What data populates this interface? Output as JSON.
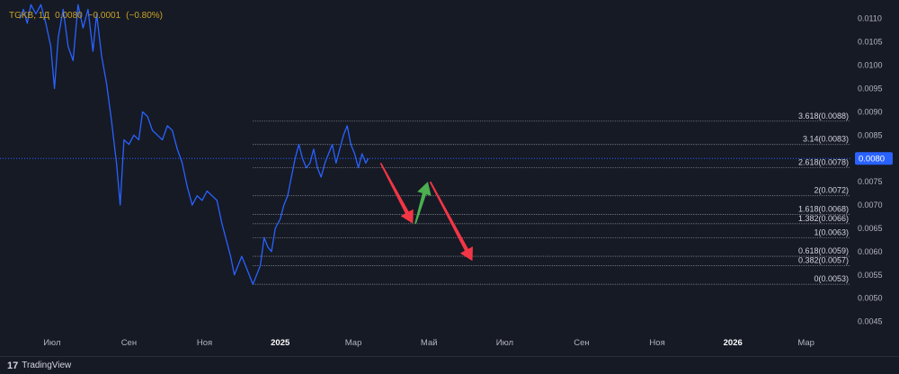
{
  "ticker": {
    "symbol": "TGKB, 1Д",
    "price": "0.0080",
    "change": "−0.0001",
    "change_pct": "(−0.80%)"
  },
  "brand": {
    "name": "TradingView",
    "logo_glyph": "17"
  },
  "colors": {
    "background": "#161a25",
    "price_line": "#2962ff",
    "grid": "#2a2e39",
    "fib_line": "#9598a1",
    "label_text": "#d1d4dc",
    "axis_text": "#b2b5be",
    "x_axis_text": "#b2b5be",
    "x_axis_year": "#ffffff",
    "price_tag_bg": "#2962ff",
    "arrow_down": "#f23645",
    "arrow_up": "#4caf50",
    "ticker_text": "#c9a227"
  },
  "current_price_tag": "0.0080",
  "chart_data": {
    "type": "line",
    "title": "",
    "xlabel": "",
    "ylabel": "",
    "ylim": [
      0.0043,
      0.0114
    ],
    "x_range": [
      "2024-06-05",
      "2026-03-31"
    ],
    "grid": false,
    "y_ticks": [
      "0.0045",
      "0.0050",
      "0.0055",
      "0.0060",
      "0.0065",
      "0.0070",
      "0.0075",
      "0.0080",
      "0.0085",
      "0.0090",
      "0.0095",
      "0.0100",
      "0.0105",
      "0.0110"
    ],
    "x_ticks": [
      {
        "label": "Июл",
        "date": "2024-07-01",
        "year": false
      },
      {
        "label": "Сен",
        "date": "2024-09-01",
        "year": false
      },
      {
        "label": "Ноя",
        "date": "2024-11-01",
        "year": false
      },
      {
        "label": "2025",
        "date": "2025-01-01",
        "year": true
      },
      {
        "label": "Мар",
        "date": "2025-03-01",
        "year": false
      },
      {
        "label": "Май",
        "date": "2025-05-01",
        "year": false
      },
      {
        "label": "Июл",
        "date": "2025-07-01",
        "year": false
      },
      {
        "label": "Сен",
        "date": "2025-09-01",
        "year": false
      },
      {
        "label": "Ноя",
        "date": "2025-11-01",
        "year": false
      },
      {
        "label": "2026",
        "date": "2026-01-01",
        "year": true
      },
      {
        "label": "Мар",
        "date": "2026-03-01",
        "year": false
      }
    ],
    "series": [
      {
        "values": [
          [
            "2024-06-05",
            0.011
          ],
          [
            "2024-06-08",
            0.0112
          ],
          [
            "2024-06-11",
            0.0109
          ],
          [
            "2024-06-14",
            0.0113
          ],
          [
            "2024-06-18",
            0.0111
          ],
          [
            "2024-06-22",
            0.0113
          ],
          [
            "2024-06-26",
            0.0109
          ],
          [
            "2024-06-30",
            0.0104
          ],
          [
            "2024-07-03",
            0.0095
          ],
          [
            "2024-07-06",
            0.0106
          ],
          [
            "2024-07-10",
            0.0112
          ],
          [
            "2024-07-14",
            0.0104
          ],
          [
            "2024-07-18",
            0.0101
          ],
          [
            "2024-07-22",
            0.0113
          ],
          [
            "2024-07-26",
            0.0108
          ],
          [
            "2024-07-30",
            0.0112
          ],
          [
            "2024-08-03",
            0.0103
          ],
          [
            "2024-08-06",
            0.0111
          ],
          [
            "2024-08-10",
            0.0102
          ],
          [
            "2024-08-14",
            0.0096
          ],
          [
            "2024-08-18",
            0.0088
          ],
          [
            "2024-08-22",
            0.0079
          ],
          [
            "2024-08-25",
            0.007
          ],
          [
            "2024-08-28",
            0.0084
          ],
          [
            "2024-09-01",
            0.0083
          ],
          [
            "2024-09-05",
            0.0085
          ],
          [
            "2024-09-09",
            0.0084
          ],
          [
            "2024-09-12",
            0.009
          ],
          [
            "2024-09-16",
            0.0089
          ],
          [
            "2024-09-20",
            0.0086
          ],
          [
            "2024-09-24",
            0.0085
          ],
          [
            "2024-09-28",
            0.0084
          ],
          [
            "2024-10-02",
            0.0087
          ],
          [
            "2024-10-06",
            0.0086
          ],
          [
            "2024-10-10",
            0.0082
          ],
          [
            "2024-10-14",
            0.0079
          ],
          [
            "2024-10-18",
            0.0074
          ],
          [
            "2024-10-22",
            0.007
          ],
          [
            "2024-10-26",
            0.0072
          ],
          [
            "2024-10-30",
            0.0071
          ],
          [
            "2024-11-03",
            0.0073
          ],
          [
            "2024-11-07",
            0.0072
          ],
          [
            "2024-11-11",
            0.0071
          ],
          [
            "2024-11-15",
            0.0066
          ],
          [
            "2024-11-19",
            0.0062
          ],
          [
            "2024-11-22",
            0.0059
          ],
          [
            "2024-11-25",
            0.0055
          ],
          [
            "2024-11-28",
            0.0057
          ],
          [
            "2024-12-01",
            0.0059
          ],
          [
            "2024-12-04",
            0.0057
          ],
          [
            "2024-12-07",
            0.0055
          ],
          [
            "2024-12-10",
            0.0053
          ],
          [
            "2024-12-13",
            0.0055
          ],
          [
            "2024-12-16",
            0.0057
          ],
          [
            "2024-12-19",
            0.0063
          ],
          [
            "2024-12-22",
            0.0061
          ],
          [
            "2024-12-25",
            0.006
          ],
          [
            "2024-12-28",
            0.0065
          ],
          [
            "2025-01-01",
            0.0067
          ],
          [
            "2025-01-04",
            0.007
          ],
          [
            "2025-01-07",
            0.0072
          ],
          [
            "2025-01-10",
            0.0076
          ],
          [
            "2025-01-13",
            0.008
          ],
          [
            "2025-01-16",
            0.0083
          ],
          [
            "2025-01-19",
            0.008
          ],
          [
            "2025-01-22",
            0.0078
          ],
          [
            "2025-01-25",
            0.0079
          ],
          [
            "2025-01-28",
            0.0082
          ],
          [
            "2025-01-31",
            0.0078
          ],
          [
            "2025-02-03",
            0.0076
          ],
          [
            "2025-02-06",
            0.0079
          ],
          [
            "2025-02-09",
            0.0081
          ],
          [
            "2025-02-12",
            0.0083
          ],
          [
            "2025-02-15",
            0.0079
          ],
          [
            "2025-02-18",
            0.0082
          ],
          [
            "2025-02-21",
            0.0085
          ],
          [
            "2025-02-24",
            0.0087
          ],
          [
            "2025-02-27",
            0.0083
          ],
          [
            "2025-03-02",
            0.0081
          ],
          [
            "2025-03-05",
            0.0078
          ],
          [
            "2025-03-08",
            0.0081
          ],
          [
            "2025-03-11",
            0.0079
          ],
          [
            "2025-03-13",
            0.008
          ]
        ]
      }
    ],
    "fib_levels": [
      {
        "label": "3.618(0.0088)",
        "price": 0.0088
      },
      {
        "label": "3.14(0.0083)",
        "price": 0.0083
      },
      {
        "label": "2.618(0.0078)",
        "price": 0.0078
      },
      {
        "label": "2(0.0072)",
        "price": 0.0072
      },
      {
        "label": "1.618(0.0068)",
        "price": 0.0068
      },
      {
        "label": "1.382(0.0066)",
        "price": 0.0066
      },
      {
        "label": "1(0.0063)",
        "price": 0.0063
      },
      {
        "label": "0.618(0.0059)",
        "price": 0.0059
      },
      {
        "label": "0.382(0.0057)",
        "price": 0.0057
      },
      {
        "label": "0(0.0053)",
        "price": 0.0053
      }
    ],
    "fib_start_date": "2024-12-10",
    "current_price": 0.008,
    "arrows": [
      {
        "direction": "down",
        "from": [
          "2025-03-23",
          0.0079
        ],
        "to": [
          "2025-04-18",
          0.0066
        ]
      },
      {
        "direction": "up",
        "from": [
          "2025-04-20",
          0.0066
        ],
        "to": [
          "2025-04-30",
          0.0075
        ]
      },
      {
        "direction": "down",
        "from": [
          "2025-05-02",
          0.0075
        ],
        "to": [
          "2025-06-05",
          0.0058
        ]
      }
    ]
  }
}
